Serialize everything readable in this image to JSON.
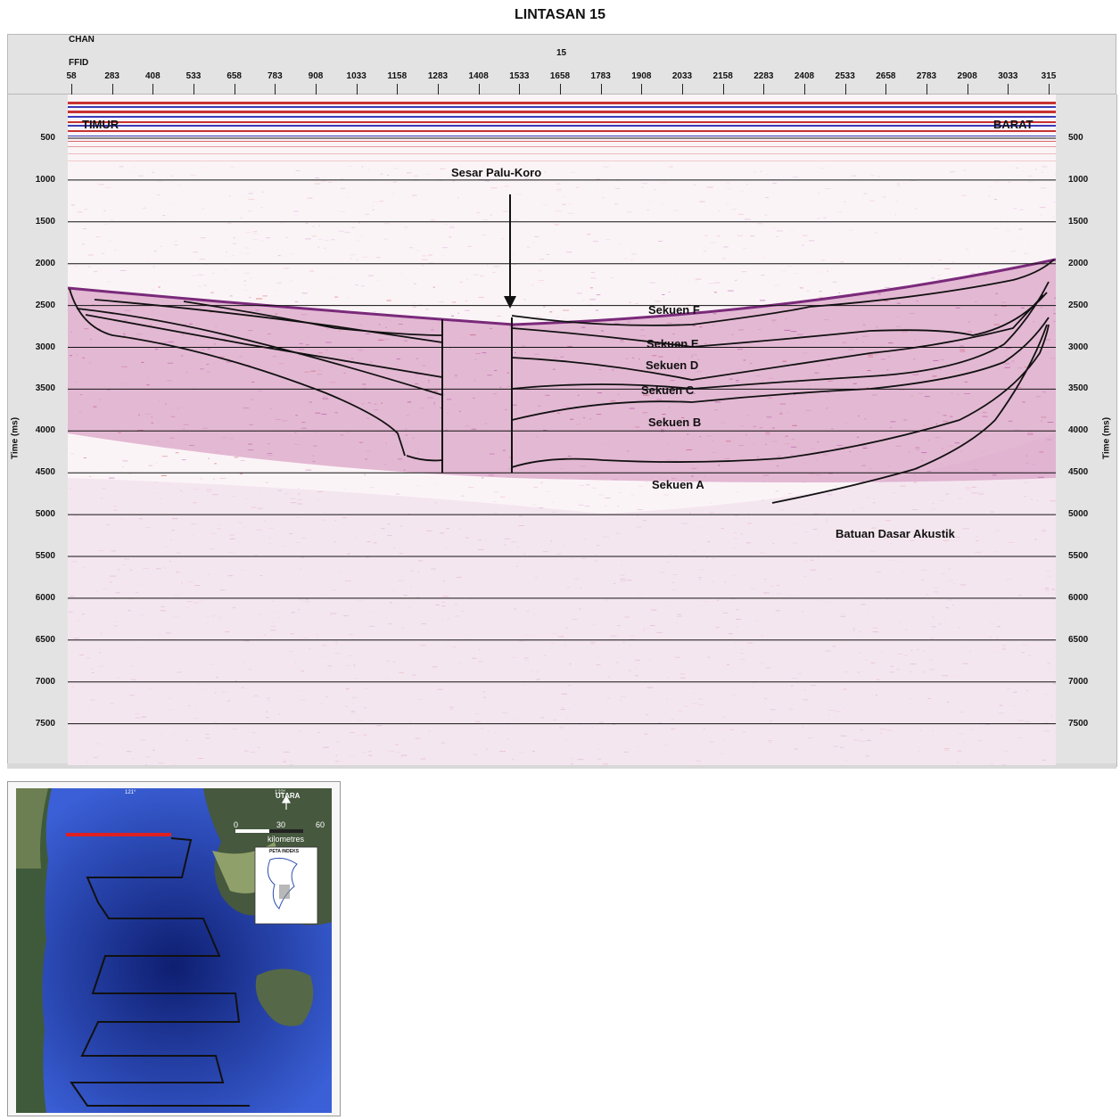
{
  "title": "LINTASAN 15",
  "header": {
    "chan_label": "CHAN",
    "ffid_label": "FFID",
    "line_number": "15",
    "ffid_ticks": [
      "58",
      "283",
      "408",
      "533",
      "658",
      "783",
      "908",
      "1033",
      "1158",
      "1283",
      "1408",
      "1533",
      "1658",
      "1783",
      "1908",
      "2033",
      "2158",
      "2283",
      "2408",
      "2533",
      "2658",
      "2783",
      "2908",
      "3033",
      "315"
    ]
  },
  "axes": {
    "left_label": "Time (ms)",
    "right_label": "Time (ms)",
    "time_ticks": [
      "500",
      "1000",
      "1500",
      "2000",
      "2500",
      "3000",
      "3500",
      "4000",
      "4500",
      "5000",
      "5500",
      "6000",
      "6500",
      "7000",
      "7500"
    ]
  },
  "annotations": {
    "east": "TIMUR",
    "west": "BARAT",
    "fault": "Sesar Palu-Koro",
    "seq_f": "Sekuen F",
    "seq_e": "Sekuen E",
    "seq_d": "Sekuen D",
    "seq_c": "Sekuen C",
    "seq_b": "Sekuen B",
    "seq_a": "Sekuen A",
    "basement": "Batuan Dasar Akustik"
  },
  "index_map": {
    "longitude_labels": [
      "121°",
      "122°"
    ],
    "north_label": "UTARA",
    "scale_ticks": [
      "0",
      "30",
      "60"
    ],
    "scale_unit": "kilometres",
    "inset_title": "PETA INDEKS",
    "highlight_color": "#e02020",
    "water_color": "#2a4fbf"
  },
  "colors": {
    "reflector_red": "#c83232",
    "reflector_blue": "#3a3ab8",
    "noise_purple": "#a0309a",
    "panel_gray": "#e3e3e3"
  }
}
